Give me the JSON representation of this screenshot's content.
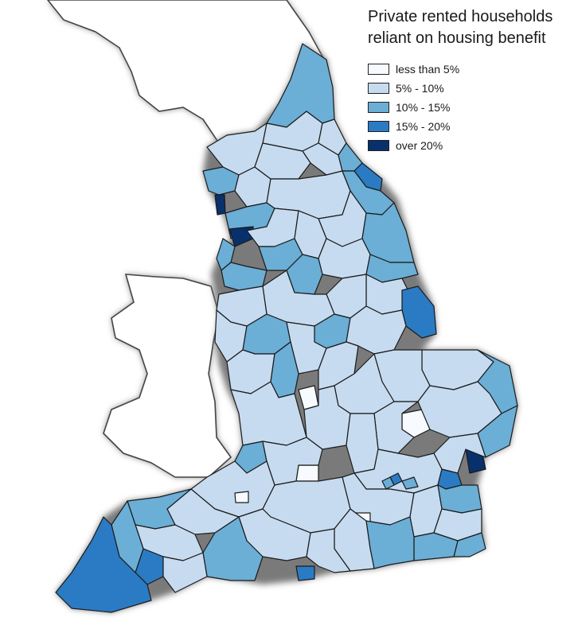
{
  "legend": {
    "title_line1": "Private rented households",
    "title_line2": "reliant on housing benefit",
    "items": [
      {
        "label": "less than 5%",
        "color": "#f7fbff"
      },
      {
        "label": "5% - 10%",
        "color": "#c6dbef"
      },
      {
        "label": "10% - 15%",
        "color": "#6baed6"
      },
      {
        "label": "15% - 20%",
        "color": "#2b7bc4"
      },
      {
        "label": "over 20%",
        "color": "#08306b"
      }
    ]
  }
}
